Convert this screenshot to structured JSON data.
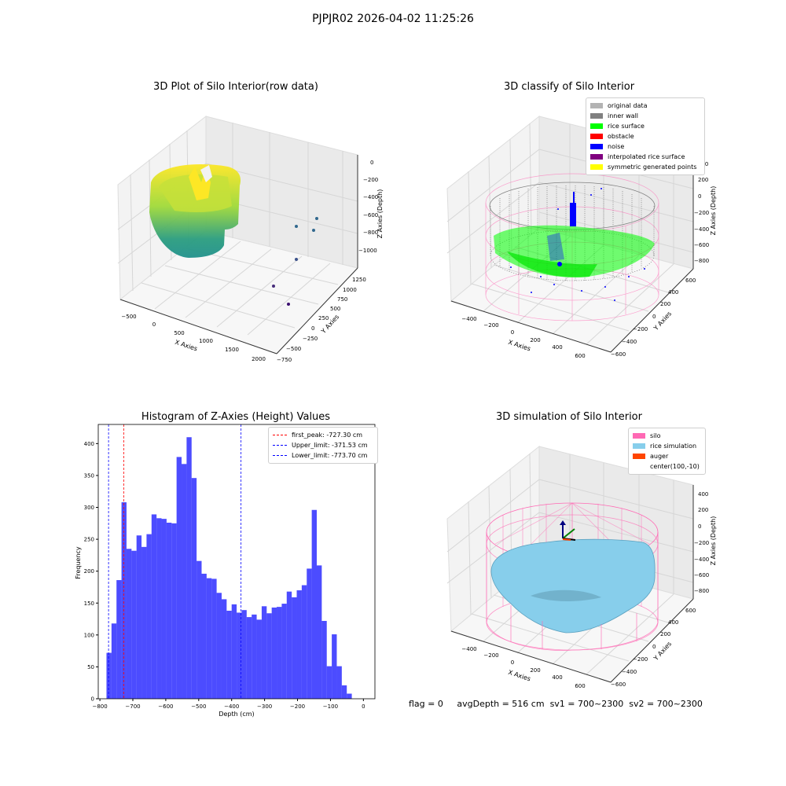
{
  "figure_title": "PJPJR02 2026-04-02 11:25:26",
  "status": {
    "flag": "flag = 0",
    "avg_depth": "avgDepth = 516 cm",
    "sv1": "sv1 = 700~2300",
    "sv2": "sv2 = 700~2300"
  },
  "chart_data": [
    {
      "type": "scatter",
      "projection": "3d",
      "title": "3D Plot of Silo Interior(row data)",
      "xlabel": "X Axies",
      "ylabel": "Y Axies",
      "zlabel": "Z Axies (Depth)",
      "x_ticks": [
        "−500",
        "0",
        "500",
        "1000",
        "1500",
        "2000"
      ],
      "y_ticks": [
        "−750",
        "−500",
        "−250",
        "0",
        "250",
        "500",
        "750",
        "1000",
        "1250"
      ],
      "z_ticks": [
        "0",
        "−200",
        "−400",
        "−600",
        "−800",
        "−1000"
      ],
      "colormap": "viridis"
    },
    {
      "type": "scatter",
      "projection": "3d",
      "title": "3D classify of Silo Interior",
      "xlabel": "X Axies",
      "ylabel": "Y Axies",
      "zlabel": "Z Axies (Depth)",
      "x_ticks": [
        "−400",
        "−200",
        "0",
        "200",
        "400",
        "600"
      ],
      "y_ticks": [
        "−600",
        "−400",
        "−200",
        "0",
        "200",
        "400",
        "600"
      ],
      "z_ticks": [
        "400",
        "200",
        "0",
        "−200",
        "−400",
        "−600",
        "−800"
      ],
      "legend_position": "top-right",
      "legend": [
        {
          "label": "original data",
          "color": "#b3b3b3"
        },
        {
          "label": "inner wall",
          "color": "#808080"
        },
        {
          "label": "rice surface",
          "color": "#00ff00"
        },
        {
          "label": "obstacle",
          "color": "#ff0000"
        },
        {
          "label": "noise",
          "color": "#0000ff"
        },
        {
          "label": "interpolated rice surface",
          "color": "#800080"
        },
        {
          "label": "symmetric generated points",
          "color": "#ffff00"
        }
      ]
    },
    {
      "type": "bar",
      "title": "Histogram of Z-Axies (Height) Values",
      "xlabel": "Depth (cm)",
      "ylabel": "Frequency",
      "xlim": [
        -805,
        35
      ],
      "ylim": [
        0,
        430
      ],
      "x_ticks": [
        -800,
        -700,
        -600,
        -500,
        -400,
        -300,
        -200,
        -100,
        0
      ],
      "y_ticks": [
        0,
        50,
        100,
        150,
        200,
        250,
        300,
        350,
        400
      ],
      "bar_color": "#0000ff",
      "bin_start": -780,
      "bin_width": 15.2,
      "values": [
        72,
        118,
        186,
        308,
        235,
        232,
        256,
        238,
        258,
        289,
        283,
        282,
        276,
        275,
        379,
        368,
        410,
        346,
        216,
        196,
        189,
        188,
        166,
        156,
        138,
        148,
        135,
        139,
        128,
        132,
        124,
        145,
        134,
        143,
        144,
        149,
        168,
        159,
        170,
        178,
        204,
        296,
        209,
        122,
        51,
        101,
        51,
        21,
        8
      ],
      "vlines": [
        {
          "label": "first_peak: -727.30 cm",
          "value": -727.3,
          "color": "#ff0000"
        },
        {
          "label": "Upper_limit: -371.53 cm",
          "value": -371.53,
          "color": "#0000ff"
        },
        {
          "label": "Lower_limit: -773.70 cm",
          "value": -773.7,
          "color": "#0000ff"
        }
      ],
      "legend_position": "top-right"
    },
    {
      "type": "area",
      "projection": "3d",
      "title": "3D simulation of Silo Interior",
      "xlabel": "X Axies",
      "ylabel": "Y Axies",
      "zlabel": "Z Axies (Depth)",
      "x_ticks": [
        "−400",
        "−200",
        "0",
        "200",
        "400",
        "600"
      ],
      "y_ticks": [
        "−600",
        "−400",
        "−200",
        "0",
        "200",
        "400",
        "600"
      ],
      "z_ticks": [
        "400",
        "200",
        "0",
        "−200",
        "−400",
        "−600",
        "−800"
      ],
      "legend_position": "top-right",
      "legend": [
        {
          "label": "silo",
          "color": "#ff69b4"
        },
        {
          "label": "rice simulation",
          "color": "#87ceeb"
        },
        {
          "label": "auger",
          "color": "#ff4500"
        },
        {
          "label": "center(100,-10)",
          "color": "#ffffff"
        }
      ]
    }
  ]
}
